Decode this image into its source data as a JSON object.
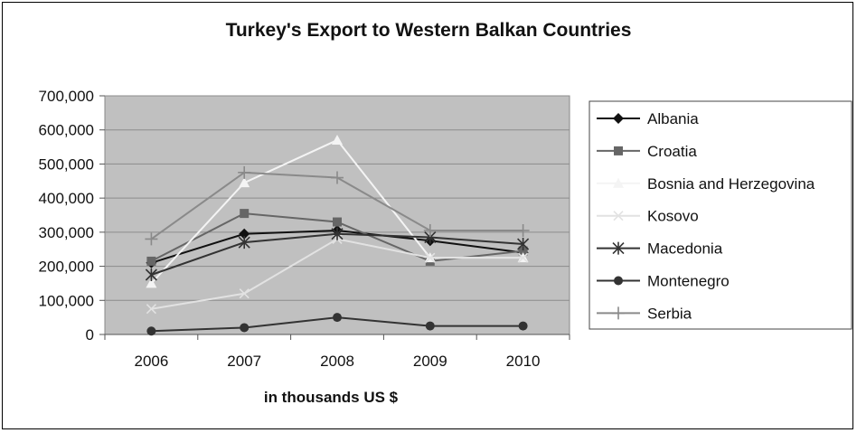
{
  "chart_data": {
    "type": "line",
    "title": "Turkey's Export to Western Balkan Countries",
    "xlabel": "in thousands US $",
    "ylabel": "",
    "categories": [
      "2006",
      "2007",
      "2008",
      "2009",
      "2010"
    ],
    "ylim": [
      0,
      700000
    ],
    "yticks": [
      0,
      100000,
      200000,
      300000,
      400000,
      500000,
      600000,
      700000
    ],
    "ytick_labels": [
      "0",
      "100,000",
      "200,000",
      "300,000",
      "400,000",
      "500,000",
      "600,000",
      "700,000"
    ],
    "grid": true,
    "plot_background": "#c0c0c0",
    "legend_position": "right",
    "series": [
      {
        "name": "Albania",
        "marker": "diamond",
        "color": "#111111",
        "values": [
          210000,
          295000,
          305000,
          275000,
          240000
        ]
      },
      {
        "name": "Croatia",
        "marker": "square",
        "color": "#666666",
        "values": [
          215000,
          355000,
          330000,
          215000,
          245000
        ]
      },
      {
        "name": "Bosnia and Herzegovina",
        "marker": "triangle",
        "color": "#f4f4f4",
        "values": [
          150000,
          445000,
          570000,
          225000,
          225000
        ]
      },
      {
        "name": "Kosovo",
        "marker": "x",
        "color": "#e2e2e2",
        "values": [
          75000,
          120000,
          280000,
          225000,
          225000
        ]
      },
      {
        "name": "Macedonia",
        "marker": "star",
        "color": "#333333",
        "values": [
          175000,
          270000,
          295000,
          285000,
          265000
        ]
      },
      {
        "name": "Montenegro",
        "marker": "circle",
        "color": "#333333",
        "values": [
          10000,
          20000,
          50000,
          25000,
          25000
        ]
      },
      {
        "name": "Serbia",
        "marker": "plus",
        "color": "#8a8a8a",
        "values": [
          280000,
          475000,
          460000,
          305000,
          305000
        ]
      }
    ]
  }
}
